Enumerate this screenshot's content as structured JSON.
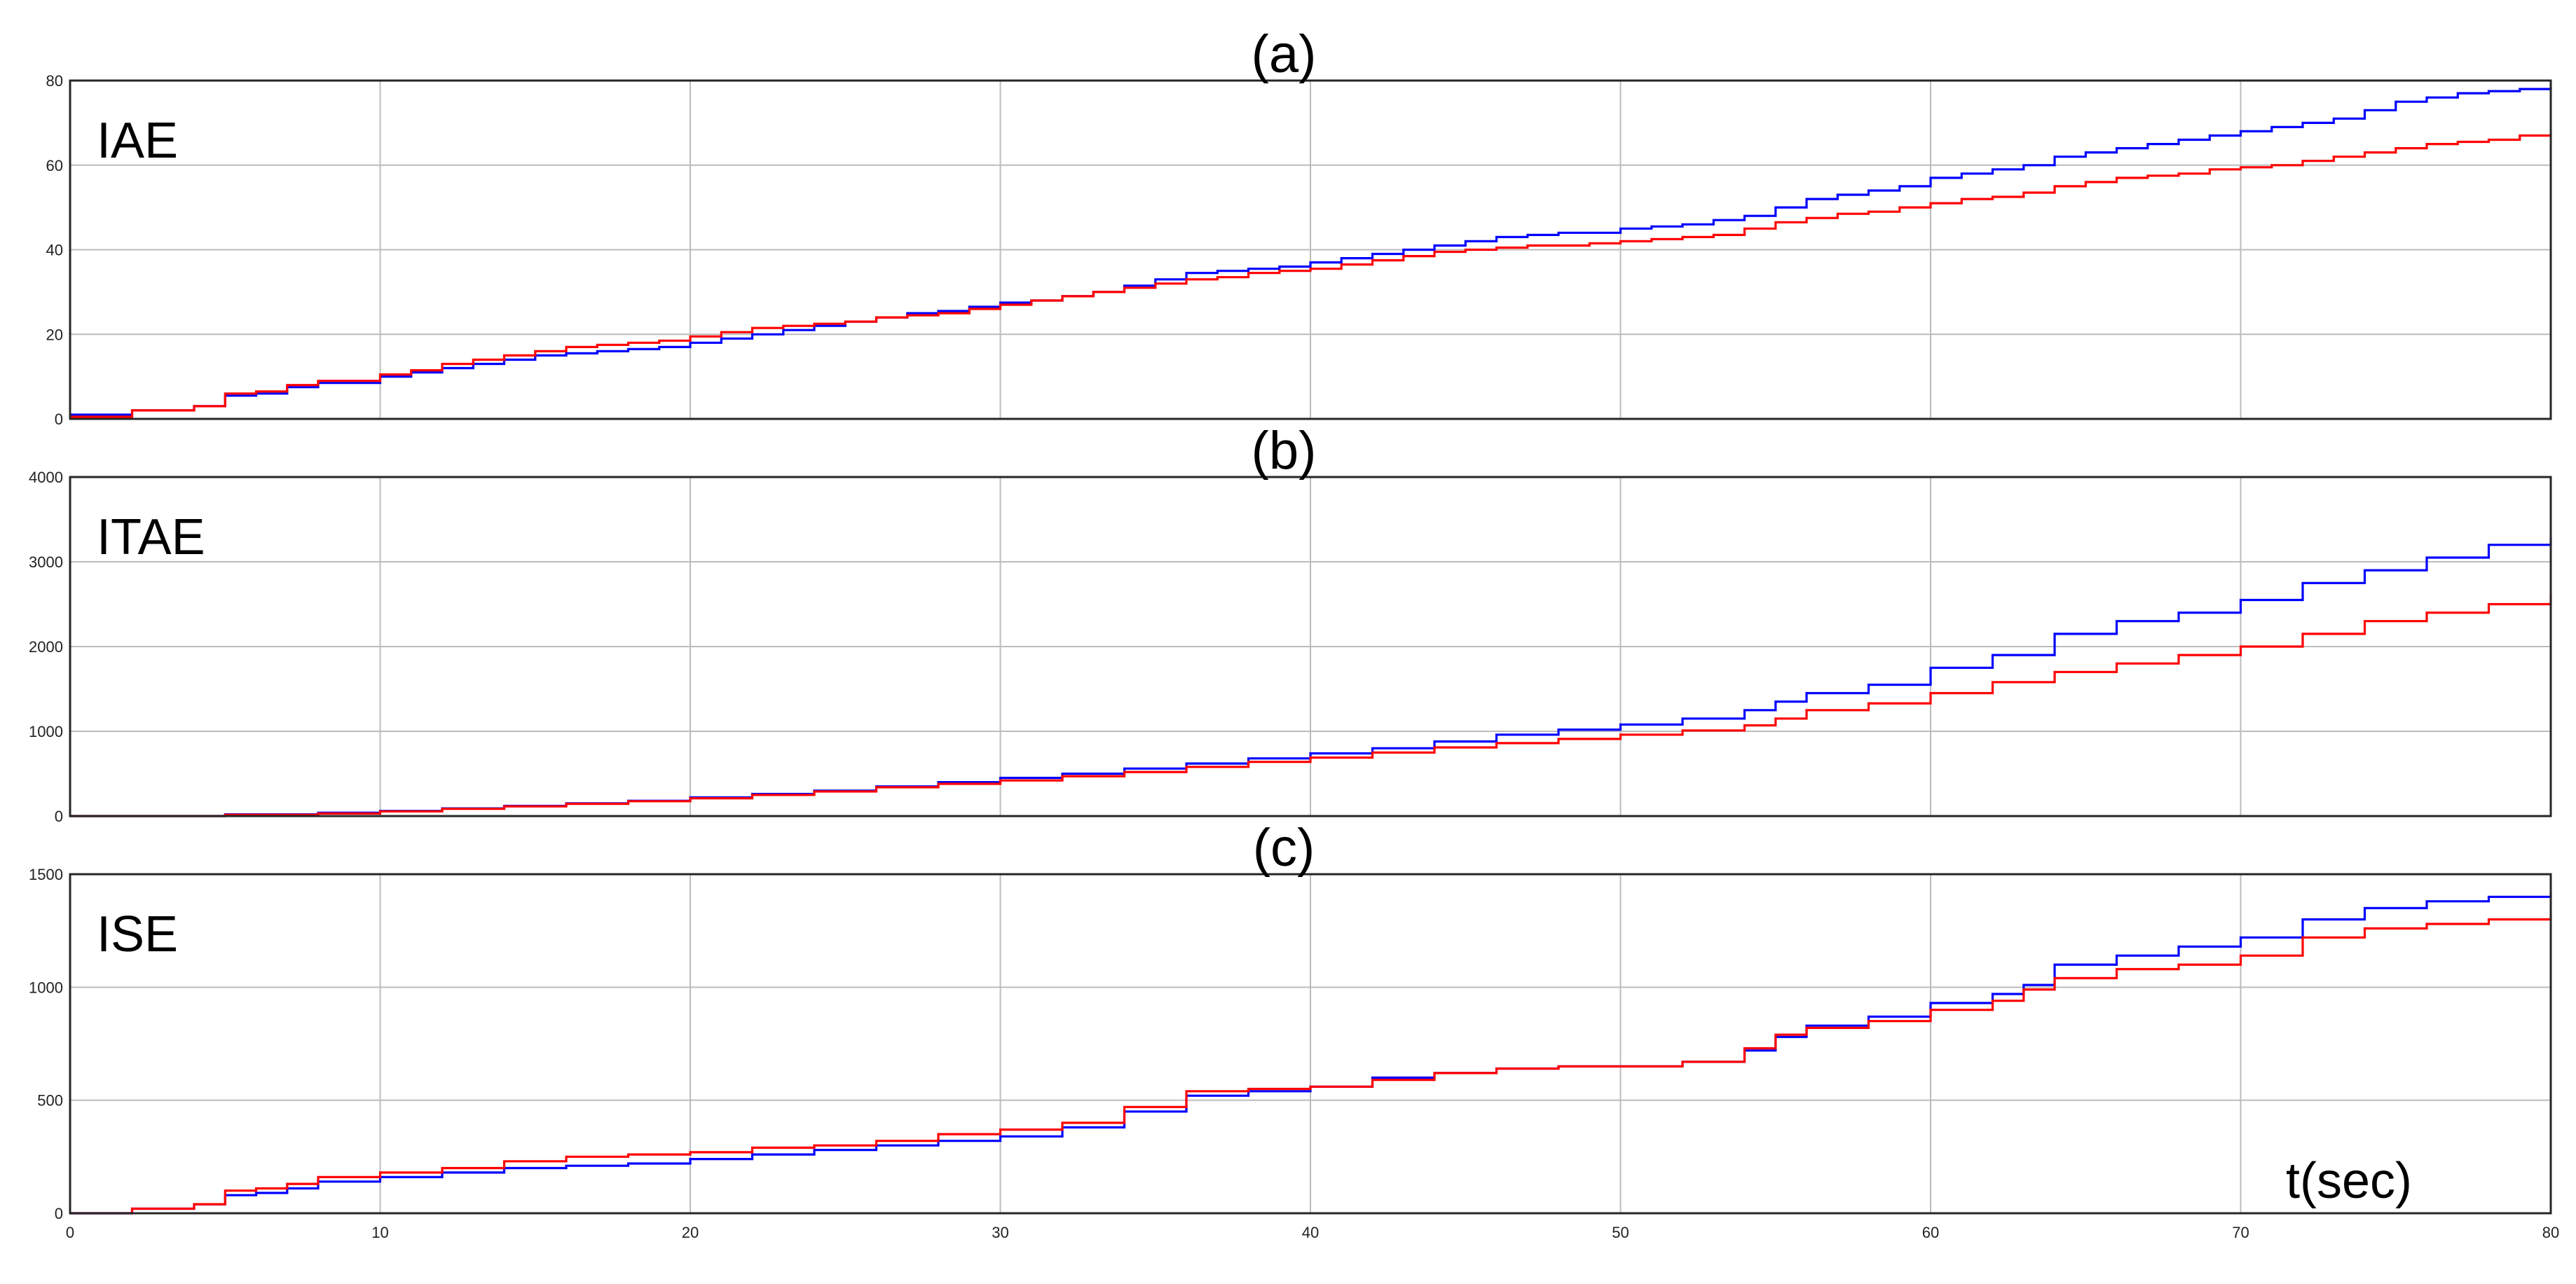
{
  "chart_data": [
    {
      "type": "line",
      "title": "(a)",
      "inner_label": "IAE",
      "xlim": [
        0,
        80
      ],
      "ylim": [
        0,
        80
      ],
      "x_ticks": [
        0,
        10,
        20,
        30,
        40,
        50,
        60,
        70,
        80
      ],
      "y_ticks": [
        0,
        20,
        40,
        60,
        80
      ],
      "grid": true,
      "step": true,
      "colors": [
        "#0000ff",
        "#ff0000"
      ],
      "series": [
        {
          "x": [
            0,
            2,
            4,
            5,
            6,
            7,
            8,
            10,
            11,
            12,
            13,
            14,
            15,
            16,
            17,
            18,
            19,
            20,
            21,
            22,
            23,
            24,
            25,
            26,
            27,
            28,
            29,
            30,
            31,
            32,
            33,
            34,
            35,
            36,
            37,
            38,
            39,
            40,
            41,
            42,
            43,
            44,
            45,
            46,
            47,
            48,
            49,
            50,
            51,
            52,
            53,
            54,
            55,
            56,
            57,
            58,
            59,
            60,
            61,
            62,
            63,
            64,
            65,
            66,
            67,
            68,
            69,
            70,
            71,
            72,
            73,
            74,
            75,
            76,
            77,
            78,
            79,
            80
          ],
          "values": [
            1,
            2,
            3,
            5.5,
            6,
            7.5,
            8.5,
            10,
            11,
            12,
            13,
            14,
            15,
            15.5,
            16,
            16.5,
            17,
            18,
            19,
            20,
            21,
            22,
            23,
            24,
            25,
            25.5,
            26.5,
            27.5,
            28,
            29,
            30,
            31.5,
            33,
            34.5,
            35,
            35.5,
            36,
            37,
            38,
            39,
            40,
            41,
            42,
            43,
            43.5,
            44,
            44,
            45,
            45.5,
            46,
            47,
            48,
            50,
            52,
            53,
            54,
            55,
            57,
            58,
            59,
            60,
            62,
            63,
            64,
            65,
            66,
            67,
            68,
            69,
            70,
            71,
            73,
            75,
            76,
            77,
            77.5,
            78,
            78.5
          ]
        },
        {
          "x": [
            0,
            2,
            4,
            5,
            6,
            7,
            8,
            10,
            11,
            12,
            13,
            14,
            15,
            16,
            17,
            18,
            19,
            20,
            21,
            22,
            23,
            24,
            25,
            26,
            27,
            28,
            29,
            30,
            31,
            32,
            33,
            34,
            35,
            36,
            37,
            38,
            39,
            40,
            41,
            42,
            43,
            44,
            45,
            46,
            47,
            48,
            49,
            50,
            51,
            52,
            53,
            54,
            55,
            56,
            57,
            58,
            59,
            60,
            61,
            62,
            63,
            64,
            65,
            66,
            67,
            68,
            69,
            70,
            71,
            72,
            73,
            74,
            75,
            76,
            77,
            78,
            79,
            80
          ],
          "values": [
            0.5,
            2,
            3,
            6,
            6.5,
            8,
            9,
            10.5,
            11.5,
            13,
            14,
            15,
            16,
            17,
            17.5,
            18,
            18.5,
            19.5,
            20.5,
            21.5,
            22,
            22.5,
            23,
            24,
            24.5,
            25,
            26,
            27,
            28,
            29,
            30,
            31,
            32,
            33,
            33.5,
            34.5,
            35,
            35.5,
            36.5,
            37.5,
            38.5,
            39.5,
            40,
            40.5,
            41,
            41,
            41.5,
            42,
            42.5,
            43,
            43.5,
            45,
            46.5,
            47.5,
            48.5,
            49,
            50,
            51,
            52,
            52.5,
            53.5,
            55,
            56,
            57,
            57.5,
            58,
            59,
            59.5,
            60,
            61,
            62,
            63,
            64,
            65,
            65.5,
            66,
            67,
            67.5
          ]
        }
      ]
    },
    {
      "type": "line",
      "title": "(b)",
      "inner_label": "ITAE",
      "xlim": [
        0,
        80
      ],
      "ylim": [
        0,
        4000
      ],
      "x_ticks": [
        0,
        10,
        20,
        30,
        40,
        50,
        60,
        70,
        80
      ],
      "y_ticks": [
        0,
        1000,
        2000,
        3000,
        4000
      ],
      "grid": true,
      "step": true,
      "colors": [
        "#0000ff",
        "#ff0000"
      ],
      "series": [
        {
          "x": [
            0,
            5,
            8,
            10,
            12,
            14,
            16,
            18,
            20,
            22,
            24,
            26,
            28,
            30,
            32,
            34,
            36,
            38,
            40,
            42,
            44,
            46,
            48,
            50,
            52,
            54,
            55,
            56,
            58,
            60,
            62,
            64,
            66,
            68,
            70,
            72,
            74,
            76,
            78,
            80
          ],
          "values": [
            0,
            20,
            40,
            60,
            90,
            120,
            150,
            180,
            220,
            260,
            300,
            350,
            400,
            450,
            500,
            560,
            620,
            680,
            740,
            800,
            880,
            960,
            1020,
            1080,
            1150,
            1250,
            1350,
            1450,
            1550,
            1750,
            1900,
            2150,
            2300,
            2400,
            2550,
            2750,
            2900,
            3050,
            3200,
            3280
          ]
        },
        {
          "x": [
            0,
            5,
            8,
            10,
            12,
            14,
            16,
            18,
            20,
            22,
            24,
            26,
            28,
            30,
            32,
            34,
            36,
            38,
            40,
            42,
            44,
            46,
            48,
            50,
            52,
            54,
            55,
            56,
            58,
            60,
            62,
            64,
            66,
            68,
            70,
            72,
            74,
            76,
            78,
            80
          ],
          "values": [
            0,
            15,
            30,
            55,
            85,
            115,
            145,
            175,
            210,
            250,
            290,
            340,
            380,
            420,
            470,
            520,
            580,
            640,
            690,
            750,
            810,
            860,
            910,
            960,
            1010,
            1070,
            1150,
            1250,
            1330,
            1450,
            1580,
            1700,
            1800,
            1900,
            2000,
            2150,
            2300,
            2400,
            2500,
            2620
          ]
        }
      ]
    },
    {
      "type": "line",
      "title": "(c)",
      "inner_label": "ISE",
      "xlabel": "t(sec)",
      "xlim": [
        0,
        80
      ],
      "ylim": [
        0,
        1500
      ],
      "x_ticks": [
        0,
        10,
        20,
        30,
        40,
        50,
        60,
        70,
        80
      ],
      "y_ticks": [
        0,
        500,
        1000,
        1500
      ],
      "grid": true,
      "step": true,
      "colors": [
        "#0000ff",
        "#ff0000"
      ],
      "series": [
        {
          "x": [
            0,
            2,
            4,
            5,
            6,
            7,
            8,
            10,
            12,
            14,
            16,
            18,
            20,
            22,
            24,
            26,
            28,
            30,
            32,
            34,
            36,
            38,
            40,
            42,
            44,
            46,
            48,
            50,
            52,
            54,
            55,
            56,
            58,
            60,
            62,
            63,
            64,
            66,
            68,
            70,
            72,
            74,
            76,
            78,
            80
          ],
          "values": [
            0,
            20,
            40,
            80,
            90,
            110,
            140,
            160,
            180,
            200,
            210,
            220,
            240,
            260,
            280,
            300,
            320,
            340,
            380,
            450,
            520,
            540,
            560,
            600,
            620,
            640,
            650,
            650,
            670,
            720,
            780,
            830,
            870,
            930,
            970,
            1010,
            1100,
            1140,
            1180,
            1220,
            1300,
            1350,
            1380,
            1400,
            1420
          ]
        },
        {
          "x": [
            0,
            2,
            4,
            5,
            6,
            7,
            8,
            10,
            12,
            14,
            16,
            18,
            20,
            22,
            24,
            26,
            28,
            30,
            32,
            34,
            36,
            38,
            40,
            42,
            44,
            46,
            48,
            50,
            52,
            54,
            55,
            56,
            58,
            60,
            62,
            63,
            64,
            66,
            68,
            70,
            72,
            74,
            76,
            78,
            80
          ],
          "values": [
            0,
            20,
            40,
            100,
            110,
            130,
            160,
            180,
            200,
            230,
            250,
            260,
            270,
            290,
            300,
            320,
            350,
            370,
            400,
            470,
            540,
            550,
            560,
            590,
            620,
            640,
            650,
            650,
            670,
            730,
            790,
            820,
            850,
            900,
            940,
            990,
            1040,
            1080,
            1100,
            1140,
            1220,
            1260,
            1280,
            1300,
            1320
          ]
        }
      ]
    }
  ]
}
